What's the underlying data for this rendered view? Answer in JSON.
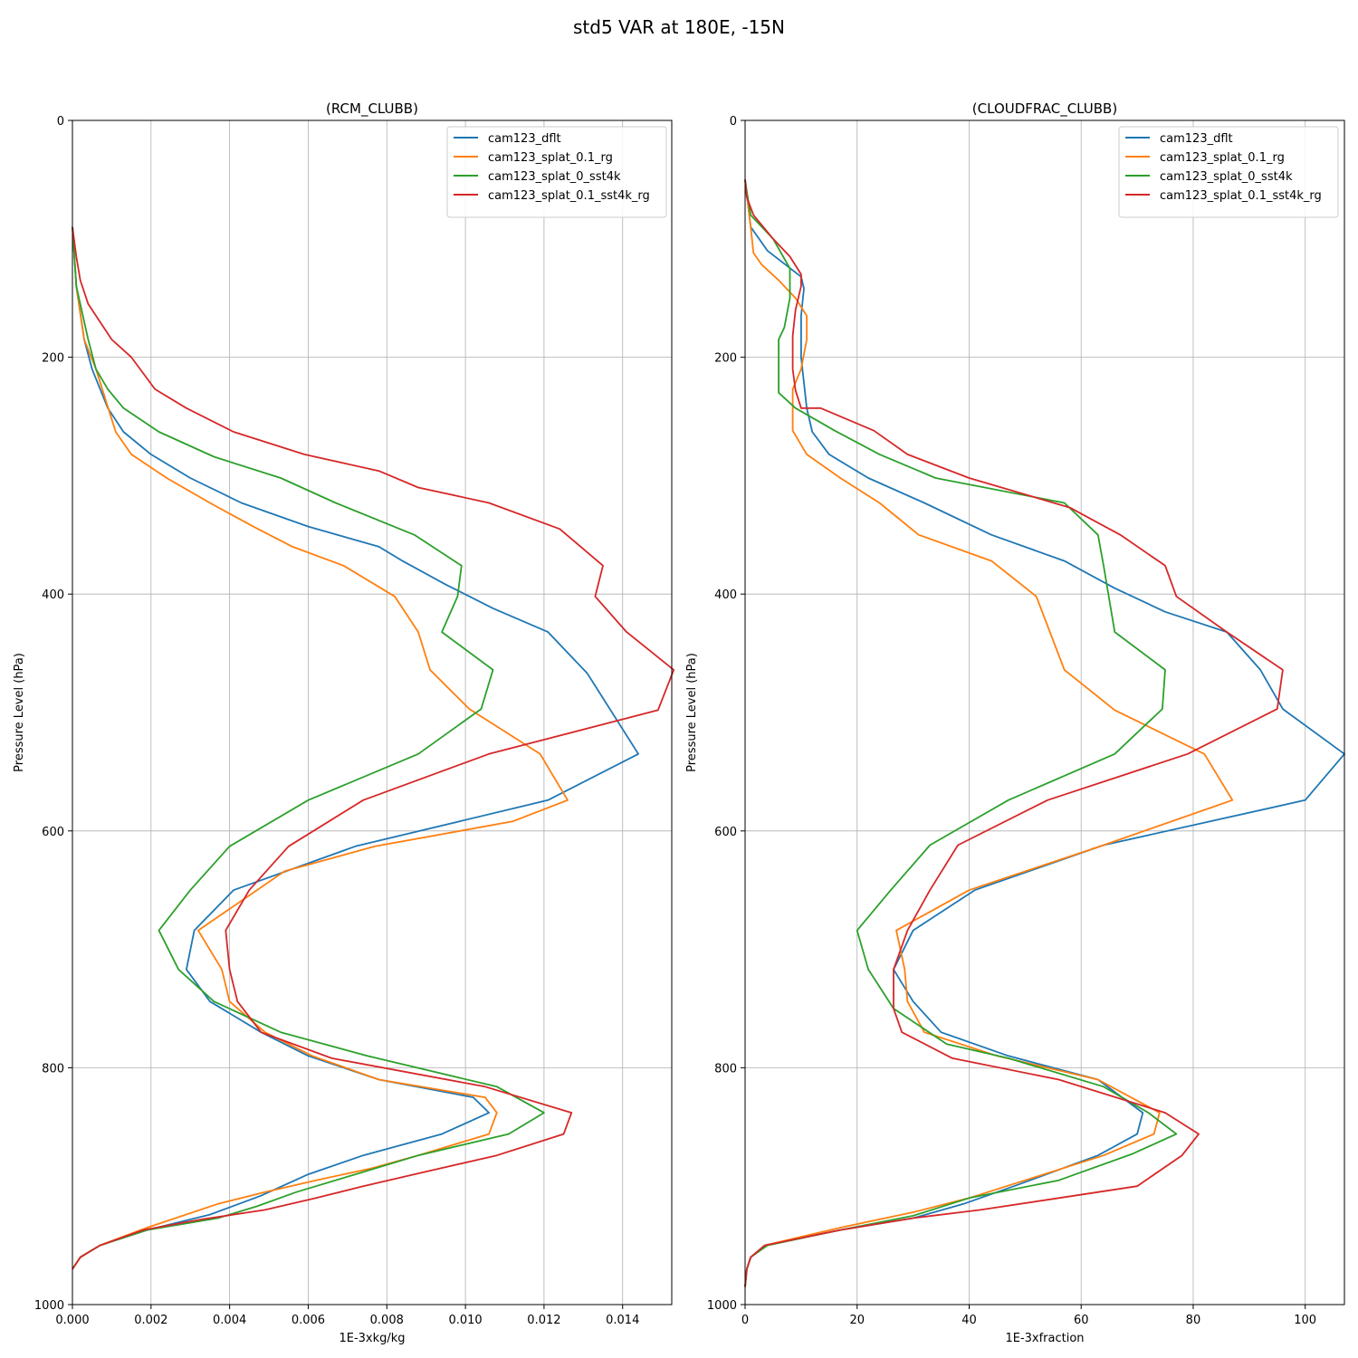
{
  "figure": {
    "suptitle": "std5 VAR at 180E, -15N"
  },
  "chart_data": [
    {
      "type": "line",
      "title": "(RCM_CLUBB)",
      "xlabel": "1E-3xkg/kg",
      "ylabel": "Pressure Level (hPa)",
      "xlim": [
        0,
        0.01525
      ],
      "ylim": [
        1000,
        0
      ],
      "y_inverted": true,
      "xticks": [
        "0.000",
        "0.002",
        "0.004",
        "0.006",
        "0.008",
        "0.010",
        "0.012",
        "0.014"
      ],
      "xtick_values": [
        0,
        0.002,
        0.004,
        0.006,
        0.008,
        0.01,
        0.012,
        0.014
      ],
      "yticks": [
        "0",
        "200",
        "400",
        "600",
        "800",
        "1000"
      ],
      "ytick_values": [
        0,
        200,
        400,
        600,
        800,
        1000
      ],
      "grid": true,
      "legend": "top-right",
      "series": [
        {
          "name": "cam123_dflt",
          "color": "#1f77b4",
          "x": [
            0,
            0.0001,
            0.0003,
            0.0005,
            0.0009,
            0.0013,
            0.002,
            0.003,
            0.0043,
            0.006,
            0.0078,
            0.0084,
            0.0095,
            0.0107,
            0.0121,
            0.0131,
            0.0144,
            0.0121,
            0.0072,
            0.0041,
            0.0031,
            0.0029,
            0.0035,
            0.0048,
            0.006,
            0.0078,
            0.0102,
            0.0106,
            0.0094,
            0.0074,
            0.006,
            0.0048,
            0.0035,
            0.0019,
            0.0007,
            0.0002,
            0
          ],
          "y": [
            90,
            140,
            185,
            210,
            243,
            263,
            282,
            302,
            323,
            343,
            360,
            372,
            392,
            412,
            432,
            467,
            535,
            574,
            613,
            650,
            684,
            717,
            744,
            770,
            790,
            810,
            825,
            838,
            856,
            874,
            890,
            908,
            924,
            937,
            950,
            960,
            970
          ]
        },
        {
          "name": "cam123_splat_0.1_rg",
          "color": "#ff7f0e",
          "x": [
            0,
            0.0001,
            0.0003,
            0.0006,
            0.0011,
            0.0015,
            0.0024,
            0.0035,
            0.0046,
            0.0056,
            0.0069,
            0.0082,
            0.0088,
            0.0091,
            0.0101,
            0.0119,
            0.0126,
            0.0112,
            0.0077,
            0.0054,
            0.0032,
            0.0038,
            0.004,
            0.0049,
            0.0061,
            0.0078,
            0.0105,
            0.0108,
            0.0106,
            0.0088,
            0.0076,
            0.0062,
            0.0049,
            0.0037,
            0.0019,
            0.0007,
            0.0002,
            0
          ],
          "y": [
            90,
            140,
            185,
            210,
            263,
            282,
            302,
            323,
            343,
            360,
            376,
            402,
            432,
            464,
            497,
            535,
            574,
            592,
            613,
            634,
            684,
            717,
            744,
            770,
            790,
            810,
            825,
            838,
            856,
            874,
            885,
            895,
            905,
            915,
            935,
            950,
            960,
            970
          ]
        },
        {
          "name": "cam123_splat_0_sst4k",
          "color": "#2ca02c",
          "x": [
            0,
            0.0001,
            0.0004,
            0.0006,
            0.0009,
            0.0013,
            0.0022,
            0.0036,
            0.0053,
            0.0067,
            0.0087,
            0.0099,
            0.0098,
            0.0094,
            0.0107,
            0.0104,
            0.0088,
            0.006,
            0.004,
            0.003,
            0.0022,
            0.0027,
            0.0036,
            0.0053,
            0.0075,
            0.0108,
            0.012,
            0.0111,
            0.0088,
            0.0072,
            0.0057,
            0.0047,
            0.0037,
            0.0019,
            0.0007,
            0.0002,
            0
          ],
          "y": [
            90,
            140,
            185,
            210,
            227,
            243,
            263,
            284,
            302,
            323,
            350,
            376,
            402,
            432,
            464,
            497,
            535,
            574,
            613,
            650,
            684,
            717,
            744,
            770,
            790,
            816,
            838,
            856,
            874,
            890,
            905,
            917,
            927,
            937,
            950,
            960,
            970
          ]
        },
        {
          "name": "cam123_splat_0.1_sst4k_rg",
          "color": "#d62728",
          "x": [
            0,
            0.0001,
            0.0002,
            0.0004,
            0.0007,
            0.001,
            0.0015,
            0.0021,
            0.0029,
            0.0041,
            0.0059,
            0.0078,
            0.0088,
            0.0106,
            0.0124,
            0.0135,
            0.0133,
            0.0141,
            0.0153,
            0.0149,
            0.0106,
            0.0074,
            0.0055,
            0.0045,
            0.0039,
            0.004,
            0.0042,
            0.0048,
            0.0066,
            0.0105,
            0.0127,
            0.0125,
            0.0108,
            0.0087,
            0.0074,
            0.0062,
            0.0049,
            0.0033,
            0.0018,
            0.0007,
            0.0002,
            0
          ],
          "y": [
            90,
            115,
            135,
            155,
            170,
            185,
            200,
            227,
            243,
            263,
            282,
            296,
            310,
            323,
            345,
            376,
            402,
            432,
            464,
            498,
            535,
            574,
            613,
            650,
            684,
            717,
            744,
            770,
            792,
            816,
            838,
            856,
            874,
            890,
            900,
            910,
            920,
            928,
            937,
            950,
            960,
            970
          ]
        }
      ]
    },
    {
      "type": "line",
      "title": "(CLOUDFRAC_CLUBB)",
      "xlabel": "1E-3xfraction",
      "ylabel": "Pressure Level (hPa)",
      "xlim": [
        0,
        107
      ],
      "ylim": [
        1000,
        0
      ],
      "y_inverted": true,
      "xticks": [
        "0",
        "20",
        "40",
        "60",
        "80",
        "100"
      ],
      "xtick_values": [
        0,
        20,
        40,
        60,
        80,
        100
      ],
      "yticks": [
        "0",
        "200",
        "400",
        "600",
        "800",
        "1000"
      ],
      "ytick_values": [
        0,
        200,
        400,
        600,
        800,
        1000
      ],
      "grid": true,
      "legend": "top-right",
      "series": [
        {
          "name": "cam123_dflt",
          "color": "#1f77b4",
          "x": [
            0,
            0.5,
            1,
            4,
            10,
            10.5,
            10,
            10,
            11,
            12,
            15,
            22,
            32,
            44,
            57,
            66,
            75,
            86,
            92,
            96,
            107,
            100,
            64,
            41,
            30,
            26.5,
            30,
            35,
            47,
            63,
            71,
            70,
            63,
            48,
            39,
            30,
            17,
            3.5,
            1,
            0.3,
            0
          ],
          "y": [
            50,
            70,
            90,
            110,
            132,
            142,
            165,
            200,
            243,
            263,
            282,
            302,
            323,
            350,
            372,
            395,
            415,
            432,
            464,
            497,
            535,
            574,
            612,
            650,
            684,
            717,
            744,
            770,
            790,
            810,
            838,
            856,
            874,
            900,
            915,
            927,
            937,
            950,
            960,
            970,
            985
          ]
        },
        {
          "name": "cam123_splat_0.1_rg",
          "color": "#ff7f0e",
          "x": [
            0,
            0.5,
            1,
            1.5,
            3,
            6,
            9,
            11,
            11,
            10,
            8.5,
            8.5,
            11,
            17,
            24,
            31,
            44,
            52,
            57,
            66,
            82,
            87,
            64,
            40,
            27,
            28.5,
            29,
            32,
            45,
            63,
            74,
            73,
            64,
            50,
            40,
            30,
            17,
            3.5,
            1,
            0.3,
            0
          ],
          "y": [
            50,
            70,
            90,
            112,
            122,
            135,
            150,
            165,
            185,
            210,
            227,
            262,
            282,
            302,
            323,
            350,
            372,
            402,
            464,
            498,
            535,
            574,
            612,
            650,
            684,
            717,
            744,
            770,
            790,
            810,
            838,
            856,
            874,
            895,
            910,
            922,
            935,
            950,
            960,
            970,
            985
          ]
        },
        {
          "name": "cam123_splat_0_sst4k",
          "color": "#2ca02c",
          "x": [
            0,
            0.3,
            1,
            5,
            8,
            8,
            7,
            6,
            6,
            6,
            6,
            9,
            16,
            24,
            34,
            57,
            63,
            64,
            66,
            75,
            74.5,
            66,
            47,
            33,
            26,
            20,
            22,
            26.5,
            36,
            47,
            64,
            72,
            77,
            69,
            56,
            40,
            30,
            17,
            4,
            1,
            0.3,
            0
          ],
          "y": [
            50,
            60,
            80,
            100,
            125,
            150,
            175,
            185,
            210,
            224,
            230,
            243,
            262,
            282,
            302,
            323,
            350,
            376,
            432,
            464,
            497,
            535,
            574,
            612,
            650,
            684,
            717,
            750,
            780,
            792,
            816,
            838,
            856,
            873,
            895,
            910,
            925,
            937,
            950,
            960,
            970,
            985
          ]
        },
        {
          "name": "cam123_splat_0.1_sst4k_rg",
          "color": "#d62728",
          "x": [
            0,
            0.3,
            1.5,
            5,
            8,
            10,
            10,
            9,
            8.5,
            8.5,
            9,
            10,
            13.5,
            23,
            29,
            40,
            58,
            67,
            75,
            77,
            86,
            96,
            95,
            79,
            54,
            38,
            33,
            29,
            26.5,
            26.5,
            28,
            37,
            56,
            75,
            81,
            78,
            70,
            56,
            42,
            30,
            17,
            3.5,
            1,
            0.3,
            0
          ],
          "y": [
            50,
            65,
            80,
            100,
            115,
            130,
            140,
            160,
            182,
            210,
            228,
            243,
            243,
            262,
            282,
            302,
            327,
            350,
            376,
            402,
            432,
            464,
            497,
            535,
            574,
            612,
            650,
            684,
            717,
            750,
            770,
            792,
            810,
            838,
            856,
            874,
            900,
            910,
            920,
            927,
            937,
            950,
            960,
            970,
            985
          ]
        }
      ]
    }
  ]
}
